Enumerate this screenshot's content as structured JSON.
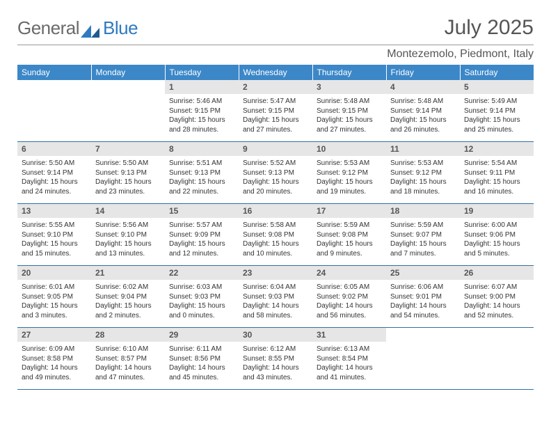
{
  "brand": {
    "part1": "General",
    "part2": "Blue"
  },
  "calendar": {
    "title": "July 2025",
    "location": "Montezemolo, Piedmont, Italy",
    "day_headers": [
      "Sunday",
      "Monday",
      "Tuesday",
      "Wednesday",
      "Thursday",
      "Friday",
      "Saturday"
    ],
    "colors": {
      "header_bg": "#3b87c8",
      "rule": "#2f6fa5",
      "daynum_bg": "#e6e6e6"
    },
    "leading_blanks": 2,
    "days": [
      {
        "n": 1,
        "sunrise": "5:46 AM",
        "sunset": "9:15 PM",
        "daylight": "15 hours and 28 minutes."
      },
      {
        "n": 2,
        "sunrise": "5:47 AM",
        "sunset": "9:15 PM",
        "daylight": "15 hours and 27 minutes."
      },
      {
        "n": 3,
        "sunrise": "5:48 AM",
        "sunset": "9:15 PM",
        "daylight": "15 hours and 27 minutes."
      },
      {
        "n": 4,
        "sunrise": "5:48 AM",
        "sunset": "9:14 PM",
        "daylight": "15 hours and 26 minutes."
      },
      {
        "n": 5,
        "sunrise": "5:49 AM",
        "sunset": "9:14 PM",
        "daylight": "15 hours and 25 minutes."
      },
      {
        "n": 6,
        "sunrise": "5:50 AM",
        "sunset": "9:14 PM",
        "daylight": "15 hours and 24 minutes."
      },
      {
        "n": 7,
        "sunrise": "5:50 AM",
        "sunset": "9:13 PM",
        "daylight": "15 hours and 23 minutes."
      },
      {
        "n": 8,
        "sunrise": "5:51 AM",
        "sunset": "9:13 PM",
        "daylight": "15 hours and 22 minutes."
      },
      {
        "n": 9,
        "sunrise": "5:52 AM",
        "sunset": "9:13 PM",
        "daylight": "15 hours and 20 minutes."
      },
      {
        "n": 10,
        "sunrise": "5:53 AM",
        "sunset": "9:12 PM",
        "daylight": "15 hours and 19 minutes."
      },
      {
        "n": 11,
        "sunrise": "5:53 AM",
        "sunset": "9:12 PM",
        "daylight": "15 hours and 18 minutes."
      },
      {
        "n": 12,
        "sunrise": "5:54 AM",
        "sunset": "9:11 PM",
        "daylight": "15 hours and 16 minutes."
      },
      {
        "n": 13,
        "sunrise": "5:55 AM",
        "sunset": "9:10 PM",
        "daylight": "15 hours and 15 minutes."
      },
      {
        "n": 14,
        "sunrise": "5:56 AM",
        "sunset": "9:10 PM",
        "daylight": "15 hours and 13 minutes."
      },
      {
        "n": 15,
        "sunrise": "5:57 AM",
        "sunset": "9:09 PM",
        "daylight": "15 hours and 12 minutes."
      },
      {
        "n": 16,
        "sunrise": "5:58 AM",
        "sunset": "9:08 PM",
        "daylight": "15 hours and 10 minutes."
      },
      {
        "n": 17,
        "sunrise": "5:59 AM",
        "sunset": "9:08 PM",
        "daylight": "15 hours and 9 minutes."
      },
      {
        "n": 18,
        "sunrise": "5:59 AM",
        "sunset": "9:07 PM",
        "daylight": "15 hours and 7 minutes."
      },
      {
        "n": 19,
        "sunrise": "6:00 AM",
        "sunset": "9:06 PM",
        "daylight": "15 hours and 5 minutes."
      },
      {
        "n": 20,
        "sunrise": "6:01 AM",
        "sunset": "9:05 PM",
        "daylight": "15 hours and 3 minutes."
      },
      {
        "n": 21,
        "sunrise": "6:02 AM",
        "sunset": "9:04 PM",
        "daylight": "15 hours and 2 minutes."
      },
      {
        "n": 22,
        "sunrise": "6:03 AM",
        "sunset": "9:03 PM",
        "daylight": "15 hours and 0 minutes."
      },
      {
        "n": 23,
        "sunrise": "6:04 AM",
        "sunset": "9:03 PM",
        "daylight": "14 hours and 58 minutes."
      },
      {
        "n": 24,
        "sunrise": "6:05 AM",
        "sunset": "9:02 PM",
        "daylight": "14 hours and 56 minutes."
      },
      {
        "n": 25,
        "sunrise": "6:06 AM",
        "sunset": "9:01 PM",
        "daylight": "14 hours and 54 minutes."
      },
      {
        "n": 26,
        "sunrise": "6:07 AM",
        "sunset": "9:00 PM",
        "daylight": "14 hours and 52 minutes."
      },
      {
        "n": 27,
        "sunrise": "6:09 AM",
        "sunset": "8:58 PM",
        "daylight": "14 hours and 49 minutes."
      },
      {
        "n": 28,
        "sunrise": "6:10 AM",
        "sunset": "8:57 PM",
        "daylight": "14 hours and 47 minutes."
      },
      {
        "n": 29,
        "sunrise": "6:11 AM",
        "sunset": "8:56 PM",
        "daylight": "14 hours and 45 minutes."
      },
      {
        "n": 30,
        "sunrise": "6:12 AM",
        "sunset": "8:55 PM",
        "daylight": "14 hours and 43 minutes."
      },
      {
        "n": 31,
        "sunrise": "6:13 AM",
        "sunset": "8:54 PM",
        "daylight": "14 hours and 41 minutes."
      }
    ],
    "labels": {
      "sunrise": "Sunrise:",
      "sunset": "Sunset:",
      "daylight": "Daylight:"
    }
  }
}
